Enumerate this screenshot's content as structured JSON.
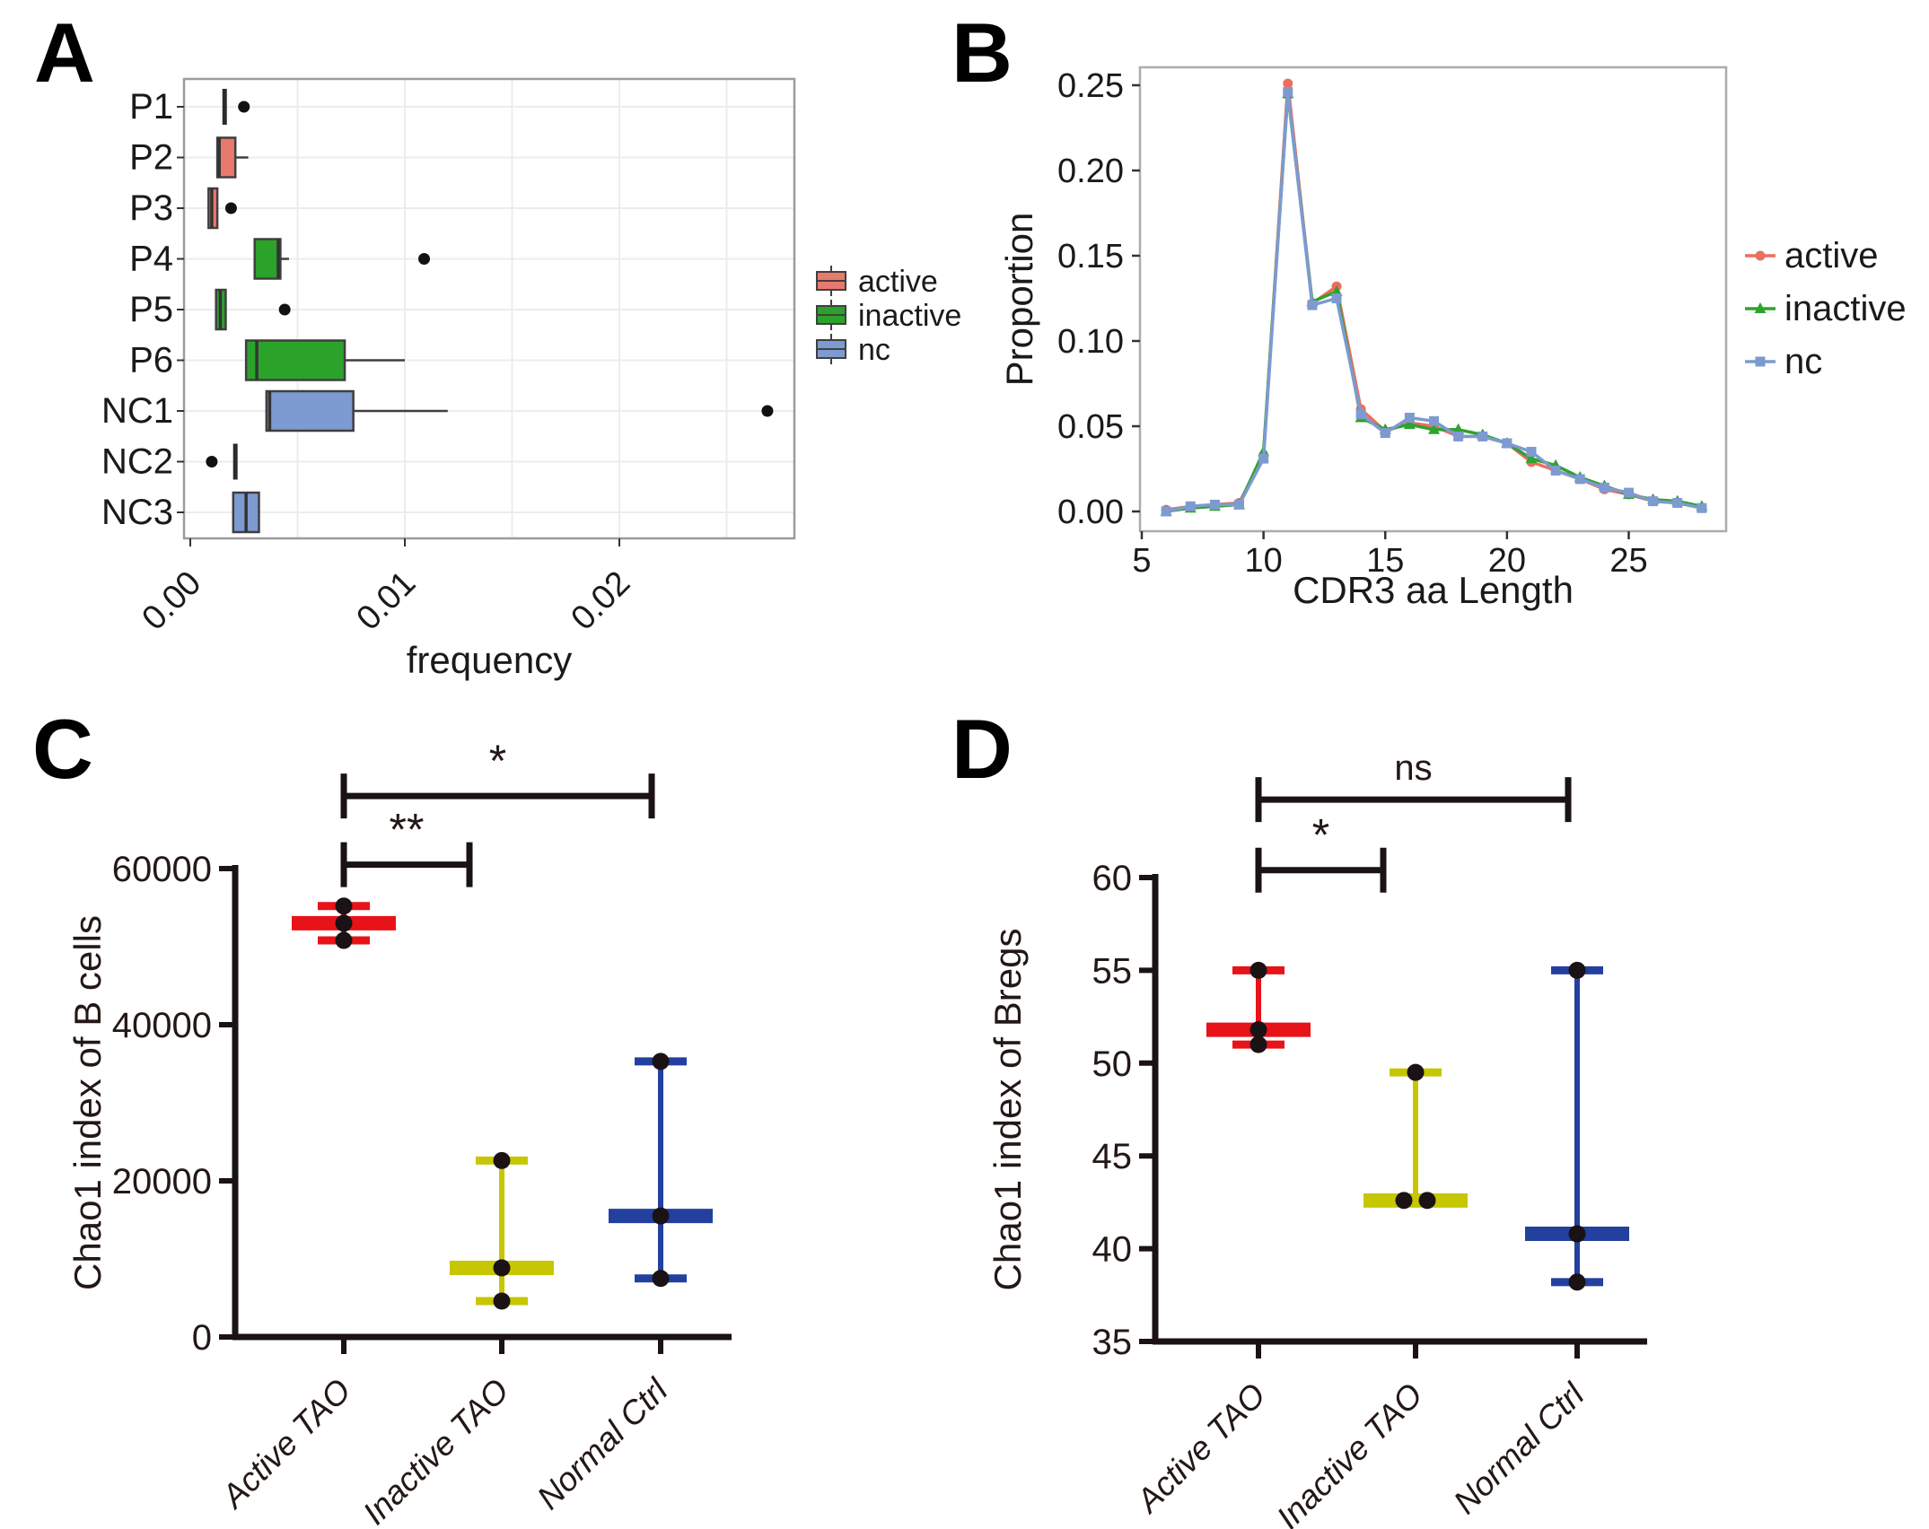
{
  "figure": {
    "background": "#ffffff"
  },
  "chart_data": [
    {
      "panel_letter": "A",
      "type": "boxplot",
      "orientation": "horizontal",
      "xlabel": "frequency",
      "x_ticks": [
        0,
        0.01,
        0.02
      ],
      "x_tick_labels": [
        "0.00",
        "0.01",
        "0.02"
      ],
      "xlim": [
        0,
        0.0282
      ],
      "x_gridlines": [
        0.005,
        0.01,
        0.015,
        0.02,
        0.025
      ],
      "group_colors": {
        "active": "#E8796D",
        "inactive": "#2BA32B",
        "nc": "#7D9AD1"
      },
      "legend": {
        "items": [
          {
            "label": "active",
            "color": "#E8796D"
          },
          {
            "label": "inactive",
            "color": "#2BA32B"
          },
          {
            "label": "nc",
            "color": "#7D9AD1"
          }
        ]
      },
      "rows": [
        {
          "label": "P1",
          "group": "active",
          "whisker_low": 0.0016,
          "q1": 0.0016,
          "median": 0.0016,
          "q3": 0.0016,
          "whisker_high": 0.0016,
          "outliers": [
            0.0025
          ]
        },
        {
          "label": "P2",
          "group": "active",
          "whisker_low": 0.00126,
          "q1": 0.00126,
          "median": 0.00135,
          "q3": 0.0021,
          "whisker_high": 0.0027,
          "outliers": []
        },
        {
          "label": "P3",
          "group": "active",
          "whisker_low": 0.0008,
          "q1": 0.00085,
          "median": 0.001,
          "q3": 0.00126,
          "whisker_high": 0.00126,
          "outliers": [
            0.0019
          ]
        },
        {
          "label": "P4",
          "group": "inactive",
          "whisker_low": 0.003,
          "q1": 0.003,
          "median": 0.0041,
          "q3": 0.0042,
          "whisker_high": 0.0046,
          "outliers": [
            0.0109
          ]
        },
        {
          "label": "P5",
          "group": "inactive",
          "whisker_low": 0.0012,
          "q1": 0.0012,
          "median": 0.0014,
          "q3": 0.00165,
          "whisker_high": 0.00165,
          "outliers": [
            0.0044
          ]
        },
        {
          "label": "P6",
          "group": "inactive",
          "whisker_low": 0.0026,
          "q1": 0.0026,
          "median": 0.0031,
          "q3": 0.0072,
          "whisker_high": 0.01,
          "outliers": []
        },
        {
          "label": "NC1",
          "group": "nc",
          "whisker_low": 0.00355,
          "q1": 0.00355,
          "median": 0.0037,
          "q3": 0.0076,
          "whisker_high": 0.012,
          "outliers": [
            0.0269
          ]
        },
        {
          "label": "NC2",
          "group": "nc",
          "whisker_low": 0.0021,
          "q1": 0.0021,
          "median": 0.0021,
          "q3": 0.0021,
          "whisker_high": 0.0021,
          "outliers": [
            0.001
          ]
        },
        {
          "label": "NC3",
          "group": "nc",
          "whisker_low": 0.002,
          "q1": 0.002,
          "median": 0.0026,
          "q3": 0.0032,
          "whisker_high": 0.0032,
          "outliers": []
        }
      ]
    },
    {
      "panel_letter": "B",
      "type": "line",
      "xlabel": "CDR3 aa Length",
      "ylabel": "Proportion",
      "x_ticks": [
        5,
        10,
        15,
        20,
        25
      ],
      "y_ticks": [
        0,
        0.05,
        0.1,
        0.15,
        0.2,
        0.25
      ],
      "y_tick_labels": [
        "0.00",
        "0.05",
        "0.10",
        "0.15",
        "0.20",
        "0.25"
      ],
      "xlim": [
        4.9,
        29
      ],
      "ylim": [
        0,
        0.26
      ],
      "x": [
        6,
        7,
        8,
        9,
        10,
        11,
        12,
        13,
        14,
        15,
        16,
        17,
        18,
        19,
        20,
        21,
        22,
        23,
        24,
        25,
        26,
        27,
        28
      ],
      "series": [
        {
          "name": "active",
          "color": "#EC6E5E",
          "marker": "circle",
          "values": [
            0.001,
            0.003,
            0.004,
            0.005,
            0.033,
            0.251,
            0.122,
            0.132,
            0.06,
            0.047,
            0.052,
            0.05,
            0.044,
            0.044,
            0.04,
            0.029,
            0.024,
            0.019,
            0.013,
            0.01,
            0.006,
            0.005,
            0.002
          ]
        },
        {
          "name": "inactive",
          "color": "#2EA32E",
          "marker": "triangle",
          "values": [
            0.0,
            0.002,
            0.003,
            0.004,
            0.035,
            0.245,
            0.123,
            0.129,
            0.055,
            0.048,
            0.051,
            0.048,
            0.048,
            0.045,
            0.04,
            0.031,
            0.027,
            0.02,
            0.015,
            0.01,
            0.007,
            0.006,
            0.003
          ]
        },
        {
          "name": "nc",
          "color": "#7D9AD1",
          "marker": "square",
          "values": [
            0.0,
            0.003,
            0.004,
            0.004,
            0.031,
            0.246,
            0.121,
            0.125,
            0.057,
            0.046,
            0.055,
            0.053,
            0.044,
            0.044,
            0.04,
            0.035,
            0.024,
            0.019,
            0.014,
            0.011,
            0.006,
            0.005,
            0.002
          ]
        }
      ],
      "legend": {
        "position": "right",
        "items": [
          "active",
          "inactive",
          "nc"
        ]
      }
    },
    {
      "panel_letter": "C",
      "type": "scatter-minmax",
      "ylabel": "Chao1 index of B cells",
      "y_ticks": [
        0,
        20000,
        40000,
        60000
      ],
      "y_tick_labels": [
        "0",
        "20000",
        "40000",
        "60000"
      ],
      "ylim": [
        0,
        78000
      ],
      "categories": [
        "Active TAO",
        "Inactive TAO",
        "Normal Ctrl"
      ],
      "groups": [
        {
          "label": "Active TAO",
          "color": "#E81219",
          "max": 55200,
          "median": 53000,
          "min": 50800,
          "points": [
            55200,
            53000,
            50800
          ]
        },
        {
          "label": "Inactive TAO",
          "color": "#C6C702",
          "max": 22600,
          "median": 8850,
          "min": 4600,
          "points": [
            22600,
            8850,
            4600
          ]
        },
        {
          "label": "Normal Ctrl",
          "color": "#24409F",
          "max": 35300,
          "median": 15500,
          "min": 7500,
          "points": [
            35300,
            15500,
            7500
          ]
        }
      ],
      "brackets": [
        {
          "from": 0,
          "to": 1,
          "label": "**",
          "y": 60500
        },
        {
          "from": 0,
          "to": 2,
          "label": "*",
          "y": 69300
        }
      ]
    },
    {
      "panel_letter": "D",
      "type": "scatter-minmax",
      "ylabel": "Chao1 index of Bregs",
      "y_ticks": [
        35,
        40,
        45,
        50,
        55,
        60
      ],
      "y_tick_labels": [
        "35",
        "40",
        "45",
        "50",
        "55",
        "60"
      ],
      "ylim": [
        35,
        66
      ],
      "categories": [
        "Active TAO",
        "Inactive TAO",
        "Normal Ctrl"
      ],
      "groups": [
        {
          "label": "Active TAO",
          "color": "#E81219",
          "max": 55,
          "median": 51.8,
          "min": 51,
          "points": [
            55,
            51.8,
            51
          ]
        },
        {
          "label": "Inactive TAO",
          "color": "#C6C702",
          "max": 49.5,
          "median": 42.6,
          "min": 42.6,
          "points": [
            49.5,
            {
              "v": 42.6,
              "dx": -13
            },
            {
              "v": 42.6,
              "dx": 13
            }
          ]
        },
        {
          "label": "Normal Ctrl",
          "color": "#24409F",
          "max": 55,
          "median": 40.8,
          "min": 38.2,
          "points": [
            55,
            40.8,
            38.2
          ]
        }
      ],
      "brackets": [
        {
          "from": 0,
          "to": 1,
          "label": "*",
          "y": 60.4
        },
        {
          "from": 0,
          "to": 2,
          "label": "ns",
          "y": 64.2
        }
      ]
    }
  ]
}
